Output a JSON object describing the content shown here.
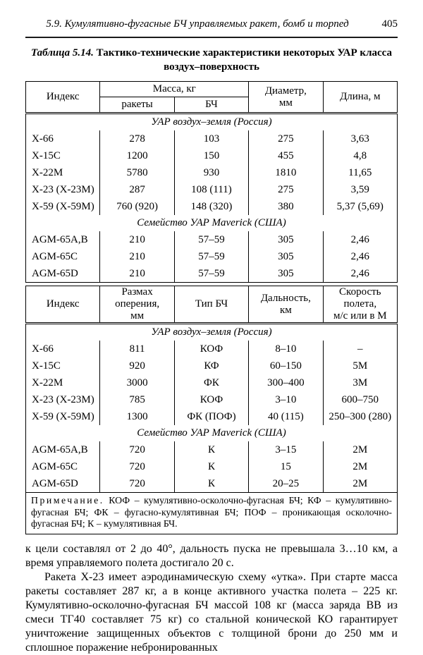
{
  "head": {
    "text": "5.9. Кумулятивно-фугасные БЧ управляемых ракет, бомб и торпед",
    "page_number": "405"
  },
  "caption": {
    "label": "Таблица 5.14.",
    "rest": " Тактико-технические характеристики некоторых УАР класса",
    "line2": "воздух–поверхность"
  },
  "table1": {
    "col_index": "Индекс",
    "col_mass": "Масса, кг",
    "col_mass_rocket": "ракеты",
    "col_mass_bch": "БЧ",
    "col_diameter_1": "Диаметр,",
    "col_diameter_2": "мм",
    "col_length": "Длина, м",
    "sections": [
      {
        "title": "УАР воздух–земля (Россия)",
        "rows": [
          [
            "Х-66",
            "278",
            "103",
            "275",
            "3,63"
          ],
          [
            "Х-15С",
            "1200",
            "150",
            "455",
            "4,8"
          ],
          [
            "Х-22М",
            "5780",
            "930",
            "1810",
            "11,65"
          ],
          [
            "Х-23 (Х-23М)",
            "287",
            "108 (111)",
            "275",
            "3,59"
          ],
          [
            "Х-59 (Х-59М)",
            "760 (920)",
            "148 (320)",
            "380",
            "5,37 (5,69)"
          ]
        ]
      },
      {
        "title": "Семейство УАР Maverick (США)",
        "rows": [
          [
            "AGM-65A,B",
            "210",
            "57–59",
            "305",
            "2,46"
          ],
          [
            "AGM-65C",
            "210",
            "57–59",
            "305",
            "2,46"
          ],
          [
            "AGM-65D",
            "210",
            "57–59",
            "305",
            "2,46"
          ]
        ]
      }
    ]
  },
  "table2": {
    "col_index": "Индекс",
    "col_span_1": "Размах оперения,",
    "col_span_2": "мм",
    "col_type": "Тип БЧ",
    "col_range_1": "Дальность,",
    "col_range_2": "км",
    "col_speed_1": "Скорость полета,",
    "col_speed_2": "м/с или в М",
    "sections": [
      {
        "title": "УАР воздух–земля (Россия)",
        "rows": [
          [
            "Х-66",
            "811",
            "КОФ",
            "8–10",
            "–"
          ],
          [
            "Х-15С",
            "920",
            "КФ",
            "60–150",
            "5М"
          ],
          [
            "Х-22М",
            "3000",
            "ФК",
            "300–400",
            "3М"
          ],
          [
            "Х-23 (Х-23М)",
            "785",
            "КОФ",
            "3–10",
            "600–750"
          ],
          [
            "Х-59 (Х-59М)",
            "1300",
            "ФК (ПОФ)",
            "40 (115)",
            "250–300 (280)"
          ]
        ]
      },
      {
        "title": "Семейство УАР Maverick (США)",
        "rows": [
          [
            "AGM-65A,B",
            "720",
            "К",
            "3–15",
            "2М"
          ],
          [
            "AGM-65C",
            "720",
            "К",
            "15",
            "2М"
          ],
          [
            "AGM-65D",
            "720",
            "К",
            "20–25",
            "2М"
          ]
        ]
      }
    ],
    "note": {
      "label": "Примечание.",
      "text": " КОФ – кумулятивно-осколочно-фугасная БЧ; КФ – кумулятивно-фугасная БЧ; ФК – фугасно-кумулятивная БЧ; ПОФ – проникающая осколочно-фугасная БЧ; К – кумулятивная БЧ."
    }
  },
  "body": {
    "p1": "к цели составлял от 2 до 40°, дальность пуска не превышала 3…10 км, а время управляемого полета достигало 20 с.",
    "p2": "Ракета Х-23 имеет аэродинамическую схему «утка». При старте масса ракеты составляет 287 кг, а в конце активного участка полета – 225 кг. Кумулятивно-осколочно-фугасная БЧ массой 108 кг (масса заряда ВВ из смеси ТГ40 составляет 75 кг) со стальной конической КО гарантирует уничтожение защищенных объектов с толщиной брони до 250 мм и сплошное поражение небронированных"
  }
}
